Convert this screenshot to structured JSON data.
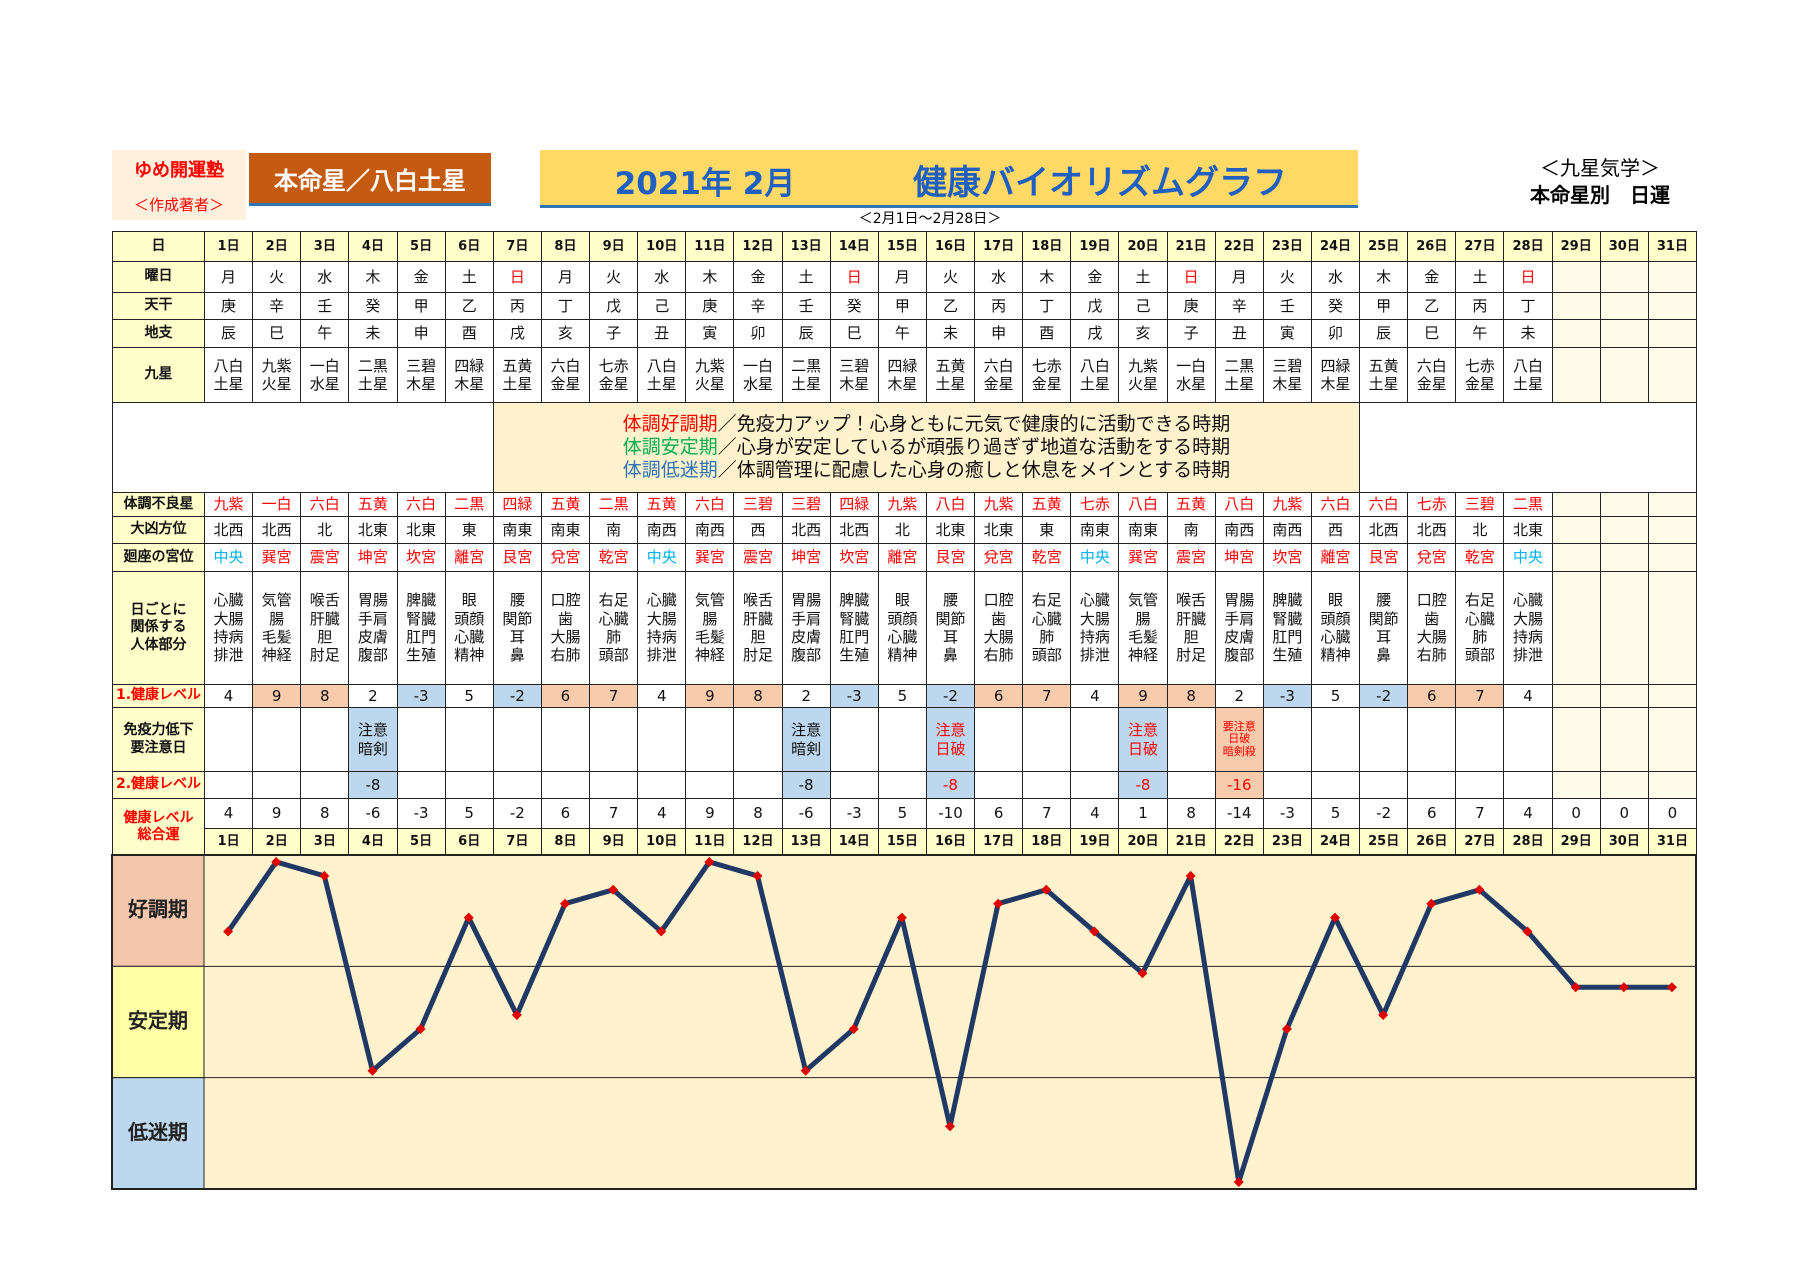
{
  "header": {
    "org": "ゆめ開運塾",
    "author": "＜作成著者＞",
    "star": "本命星／八白土星",
    "year_month": "2021年 2月",
    "title": "健康バイオリズムグラフ",
    "period": "＜2月1日～2月28日＞",
    "system": "＜九星気学＞",
    "subtitle": "本命星別　日運"
  },
  "table": {
    "days": {
      "label": "日",
      "values": [
        "1日",
        "2日",
        "3日",
        "4日",
        "5日",
        "6日",
        "7日",
        "8日",
        "9日",
        "10日",
        "11日",
        "12日",
        "13日",
        "14日",
        "15日",
        "16日",
        "17日",
        "18日",
        "19日",
        "20日",
        "21日",
        "22日",
        "23日",
        "24日",
        "25日",
        "26日",
        "27日",
        "28日",
        "29日",
        "30日",
        "31日"
      ]
    },
    "weekday": {
      "label": "曜日",
      "values": [
        "月",
        "火",
        "水",
        "木",
        "金",
        "土",
        "日",
        "月",
        "火",
        "水",
        "木",
        "金",
        "土",
        "日",
        "月",
        "火",
        "水",
        "木",
        "金",
        "土",
        "日",
        "月",
        "火",
        "水",
        "木",
        "金",
        "土",
        "日"
      ],
      "colors": [
        null,
        null,
        null,
        null,
        null,
        null,
        "#ff0000",
        null,
        null,
        null,
        null,
        null,
        null,
        "#ff0000",
        null,
        null,
        null,
        null,
        null,
        null,
        "#ff0000",
        null,
        null,
        null,
        null,
        null,
        null,
        "#ff0000"
      ]
    },
    "stem": {
      "label": "天干",
      "values": [
        "庚",
        "辛",
        "壬",
        "癸",
        "甲",
        "乙",
        "丙",
        "丁",
        "戊",
        "己",
        "庚",
        "辛",
        "壬",
        "癸",
        "甲",
        "乙",
        "丙",
        "丁",
        "戊",
        "己",
        "庚",
        "辛",
        "壬",
        "癸",
        "甲",
        "乙",
        "丙",
        "丁"
      ]
    },
    "branch": {
      "label": "地支",
      "values": [
        "辰",
        "巳",
        "午",
        "未",
        "申",
        "酉",
        "戌",
        "亥",
        "子",
        "丑",
        "寅",
        "卯",
        "辰",
        "巳",
        "午",
        "未",
        "申",
        "酉",
        "戌",
        "亥",
        "子",
        "丑",
        "寅",
        "卯",
        "辰",
        "巳",
        "午",
        "未"
      ]
    },
    "star": {
      "label": "九星",
      "values": [
        "八白\n土星",
        "九紫\n火星",
        "一白\n水星",
        "二黒\n土星",
        "三碧\n木星",
        "四緑\n木星",
        "五黄\n土星",
        "六白\n金星",
        "七赤\n金星",
        "八白\n土星",
        "九紫\n火星",
        "一白\n水星",
        "二黒\n土星",
        "三碧\n木星",
        "四緑\n木星",
        "五黄\n土星",
        "六白\n金星",
        "七赤\n金星",
        "八白\n土星",
        "九紫\n火星",
        "一白\n水星",
        "二黒\n土星",
        "三碧\n木星",
        "四緑\n木星",
        "五黄\n土星",
        "六白\n金星",
        "七赤\n金星",
        "八白\n土星"
      ]
    },
    "legend": [
      {
        "term": "体調好調期",
        "color": "#ff0000",
        "text": "／免疫力アップ！心身ともに元気で健康的に活動できる時期"
      },
      {
        "term": "体調安定期",
        "color": "#00b050",
        "text": "／心身が安定しているが頑張り過ぎず地道な活動をする時期"
      },
      {
        "term": "体調低迷期",
        "color": "#2e75b6",
        "text": "／体調管理に配慮した心身の癒しと休息をメインとする時期"
      }
    ],
    "bad_star": {
      "label": "体調不良星",
      "color": "#ff0000",
      "values": [
        "九紫",
        "一白",
        "六白",
        "五黄",
        "六白",
        "二黒",
        "四緑",
        "五黄",
        "二黒",
        "五黄",
        "六白",
        "三碧",
        "三碧",
        "四緑",
        "九紫",
        "八白",
        "九紫",
        "五黄",
        "七赤",
        "八白",
        "五黄",
        "八白",
        "九紫",
        "六白",
        "六白",
        "七赤",
        "三碧",
        "二黒"
      ]
    },
    "direction": {
      "label": "大凶方位",
      "values": [
        "北西",
        "北西",
        "北",
        "北東",
        "北東",
        "東",
        "南東",
        "南東",
        "南",
        "南西",
        "南西",
        "西",
        "北西",
        "北西",
        "北",
        "北東",
        "北東",
        "東",
        "南東",
        "南東",
        "南",
        "南西",
        "南西",
        "西",
        "北西",
        "北西",
        "北",
        "北東"
      ]
    },
    "palace": {
      "label": "廻座の宮位",
      "values": [
        "中央",
        "巽宮",
        "震宮",
        "坤宮",
        "坎宮",
        "離宮",
        "艮宮",
        "兌宮",
        "乾宮",
        "中央",
        "巽宮",
        "震宮",
        "坤宮",
        "坎宮",
        "離宮",
        "艮宮",
        "兌宮",
        "乾宮",
        "中央",
        "巽宮",
        "震宮",
        "坤宮",
        "坎宮",
        "離宮",
        "艮宮",
        "兌宮",
        "乾宮",
        "中央"
      ],
      "colors": [
        "#00b0f0",
        "#ff0000",
        "#ff0000",
        "#ff0000",
        "#ff0000",
        "#ff0000",
        "#ff0000",
        "#ff0000",
        "#ff0000",
        "#00b0f0",
        "#ff0000",
        "#ff0000",
        "#ff0000",
        "#ff0000",
        "#ff0000",
        "#ff0000",
        "#ff0000",
        "#ff0000",
        "#00b0f0",
        "#ff0000",
        "#ff0000",
        "#ff0000",
        "#ff0000",
        "#ff0000",
        "#ff0000",
        "#ff0000",
        "#ff0000",
        "#00b0f0"
      ]
    },
    "body": {
      "label": "日ごとに\n関係する\n人体部分",
      "values": [
        "心臓\n大腸\n持病\n排泄",
        "気管\n腸\n毛髪\n神経",
        "喉舌\n肝臓\n胆\n肘足",
        "胃腸\n手肩\n皮膚\n腹部",
        "脾臓\n腎臓\n肛門\n生殖",
        "眼\n頭顔\n心臓\n精神",
        "腰\n関節\n耳\n鼻",
        "口腔\n歯\n大腸\n右肺",
        "右足\n心臓\n肺\n頭部",
        "心臓\n大腸\n持病\n排泄",
        "気管\n腸\n毛髪\n神経",
        "喉舌\n肝臓\n胆\n肘足",
        "胃腸\n手肩\n皮膚\n腹部",
        "脾臓\n腎臓\n肛門\n生殖",
        "眼\n頭顔\n心臓\n精神",
        "腰\n関節\n耳\n鼻",
        "口腔\n歯\n大腸\n右肺",
        "右足\n心臓\n肺\n頭部",
        "心臓\n大腸\n持病\n排泄",
        "気管\n腸\n毛髪\n神経",
        "喉舌\n肝臓\n胆\n肘足",
        "胃腸\n手肩\n皮膚\n腹部",
        "脾臓\n腎臓\n肛門\n生殖",
        "眼\n頭顔\n心臓\n精神",
        "腰\n関節\n耳\n鼻",
        "口腔\n歯\n大腸\n右肺",
        "右足\n心臓\n肺\n頭部",
        "心臓\n大腸\n持病\n排泄"
      ]
    },
    "health1": {
      "label": "1.健康レベル",
      "label_color": "#ff0000",
      "values": [
        4,
        9,
        8,
        2,
        -3,
        5,
        -2,
        6,
        7,
        4,
        9,
        8,
        2,
        -3,
        5,
        -2,
        6,
        7,
        4,
        9,
        8,
        2,
        -3,
        5,
        -2,
        6,
        7,
        4
      ],
      "fills": [
        null,
        "#f8cbad",
        "#f8cbad",
        null,
        "#bdd7ee",
        null,
        "#bdd7ee",
        "#f8cbad",
        "#f8cbad",
        null,
        "#f8cbad",
        "#f8cbad",
        null,
        "#bdd7ee",
        null,
        "#bdd7ee",
        "#f8cbad",
        "#f8cbad",
        null,
        "#f8cbad",
        "#f8cbad",
        null,
        "#bdd7ee",
        null,
        "#bdd7ee",
        "#f8cbad",
        "#f8cbad",
        null
      ]
    },
    "immunity": {
      "label": "免疫力低下\n要注意日",
      "values": [
        null,
        null,
        null,
        "注意\n暗剣",
        null,
        null,
        null,
        null,
        null,
        null,
        null,
        null,
        "注意\n暗剣",
        null,
        null,
        "注意\n日破",
        null,
        null,
        null,
        "注意\n日破",
        null,
        "要注意\n日破\n暗剣殺",
        null,
        null,
        null,
        null,
        null,
        null
      ],
      "colors": [
        null,
        null,
        null,
        null,
        null,
        null,
        null,
        null,
        null,
        null,
        null,
        null,
        null,
        null,
        null,
        "#ff0000",
        null,
        null,
        null,
        "#ff0000",
        null,
        "#ff0000",
        null,
        null,
        null,
        null,
        null,
        null
      ],
      "fills": [
        null,
        null,
        null,
        "#bdd7ee",
        null,
        null,
        null,
        null,
        null,
        null,
        null,
        null,
        "#bdd7ee",
        null,
        null,
        "#bdd7ee",
        null,
        null,
        null,
        "#bdd7ee",
        null,
        "#f8cbad",
        null,
        null,
        null,
        null,
        null,
        null
      ]
    },
    "health2": {
      "label": "2.健康レベル",
      "label_color": "#ff0000",
      "values": [
        null,
        null,
        null,
        -8,
        null,
        null,
        null,
        null,
        null,
        null,
        null,
        null,
        -8,
        null,
        null,
        -8,
        null,
        null,
        null,
        -8,
        null,
        -16,
        null,
        null,
        null,
        null,
        null,
        null
      ],
      "colors": [
        null,
        null,
        null,
        null,
        null,
        null,
        null,
        null,
        null,
        null,
        null,
        null,
        null,
        null,
        null,
        "#ff0000",
        null,
        null,
        null,
        "#ff0000",
        null,
        "#ff0000",
        null,
        null,
        null,
        null,
        null,
        null
      ],
      "fills": [
        null,
        null,
        null,
        "#bdd7ee",
        null,
        null,
        null,
        null,
        null,
        null,
        null,
        null,
        "#bdd7ee",
        null,
        null,
        "#bdd7ee",
        null,
        null,
        null,
        "#bdd7ee",
        null,
        "#f8cbad",
        null,
        null,
        null,
        null,
        null,
        null
      ]
    },
    "total": {
      "label": "健康レベル\n総合運",
      "label_color": "#ff0000"
    }
  },
  "chart_data": {
    "type": "line",
    "categories": [
      "1日",
      "2日",
      "3日",
      "4日",
      "5日",
      "6日",
      "7日",
      "8日",
      "9日",
      "10日",
      "11日",
      "12日",
      "13日",
      "14日",
      "15日",
      "16日",
      "17日",
      "18日",
      "19日",
      "20日",
      "21日",
      "22日",
      "23日",
      "24日",
      "25日",
      "26日",
      "27日",
      "28日",
      "29日",
      "30日",
      "31日"
    ],
    "series": [
      {
        "color": "#1f3864",
        "marker_color": "#e00000",
        "values": [
          4,
          9,
          8,
          -6,
          -3,
          5,
          -2,
          6,
          7,
          4,
          9,
          8,
          -6,
          -3,
          5,
          -10,
          6,
          7,
          4,
          1,
          8,
          -14,
          -3,
          5,
          -2,
          6,
          7,
          4,
          0,
          0,
          0
        ]
      }
    ],
    "ylim": [
      -14.5,
      9.5
    ],
    "bands": [
      {
        "label": "好調期",
        "from": 1.5,
        "to": 9.5,
        "color": "#f4c7ad"
      },
      {
        "label": "安定期",
        "from": -6.5,
        "to": 1.5,
        "color": "#ffffa6"
      },
      {
        "label": "低迷期",
        "from": -14.5,
        "to": -6.5,
        "color": "#bdd7ee"
      }
    ],
    "plot_color": "#fff2cc"
  }
}
